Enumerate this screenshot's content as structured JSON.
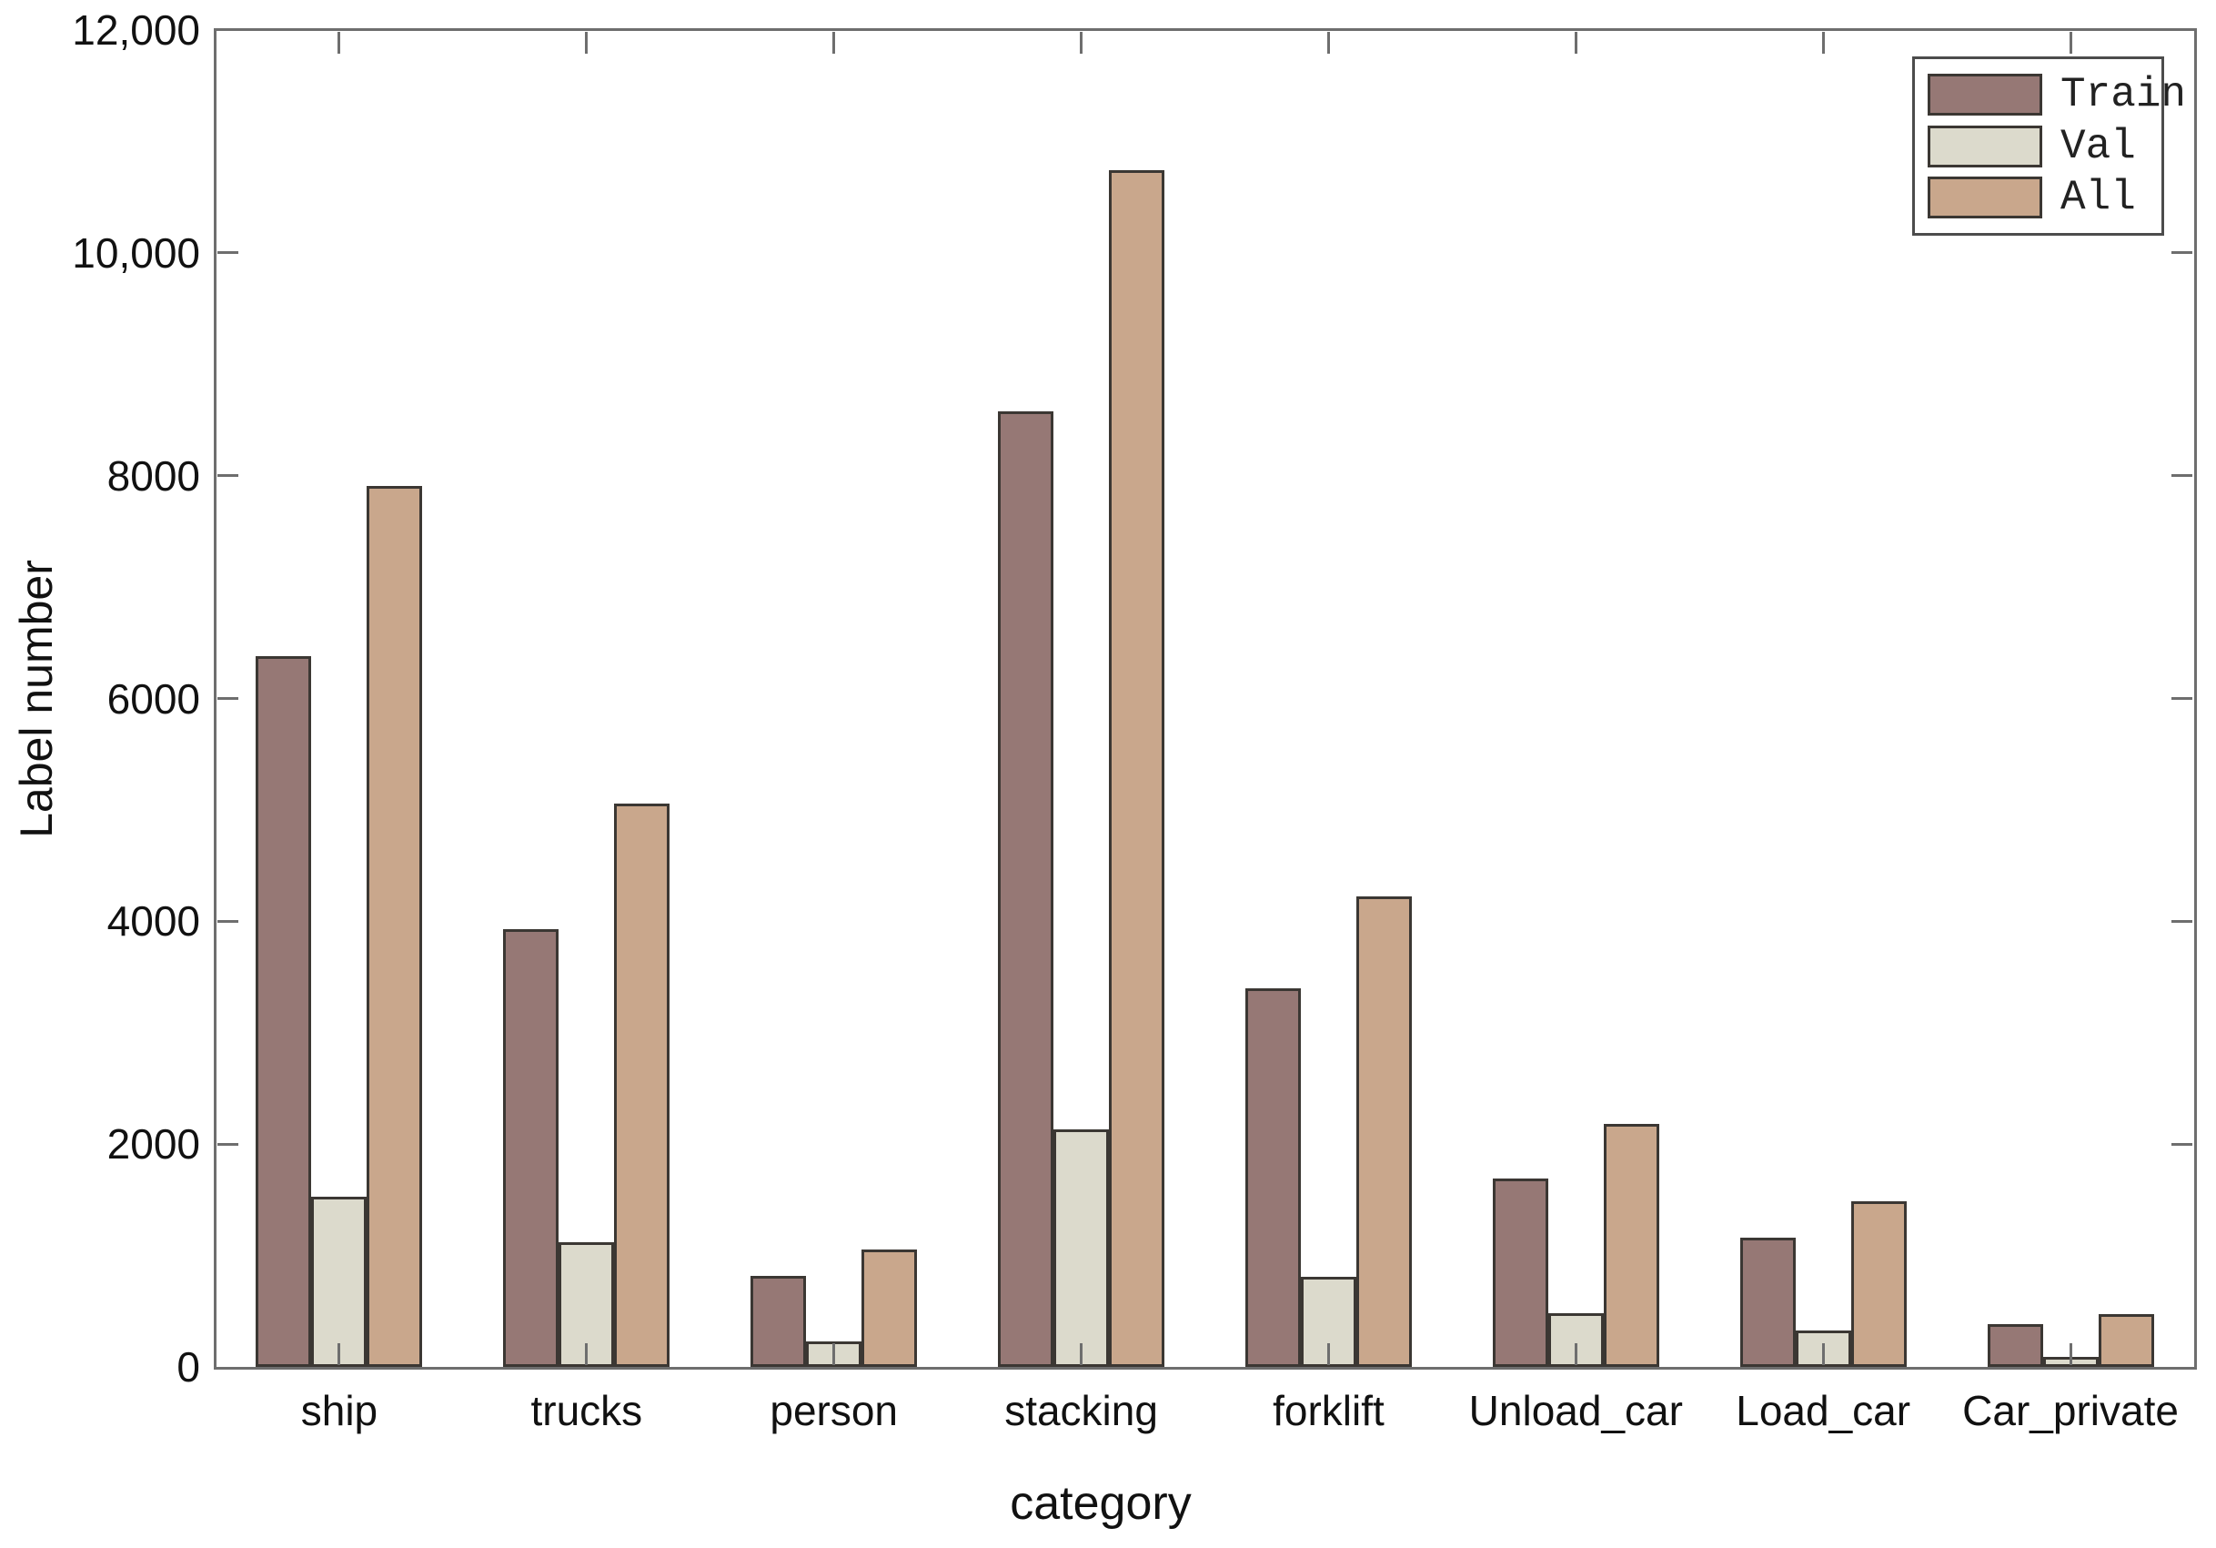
{
  "chart_data": {
    "type": "bar",
    "title": "",
    "xlabel": "category",
    "ylabel": "Label number",
    "ylim": [
      0,
      12000
    ],
    "grid": false,
    "legend_position": "top-right",
    "categories": [
      "ship",
      "trucks",
      "person",
      "stacking",
      "forklift",
      "Unload_car",
      "Load_car",
      "Car_private"
    ],
    "series": [
      {
        "name": "Train",
        "color": "#967875",
        "values": [
          6380,
          3930,
          820,
          8580,
          3400,
          1690,
          1160,
          380
        ]
      },
      {
        "name": "Val",
        "color": "#dcdacc",
        "values": [
          1530,
          1120,
          230,
          2130,
          810,
          480,
          330,
          90
        ]
      },
      {
        "name": "All",
        "color": "#c9a78c",
        "values": [
          7910,
          5060,
          1050,
          10740,
          4220,
          2180,
          1490,
          470
        ]
      }
    ],
    "yticks": [
      {
        "value": 0,
        "label": "0"
      },
      {
        "value": 2000,
        "label": "2000"
      },
      {
        "value": 4000,
        "label": "4000"
      },
      {
        "value": 6000,
        "label": "6000"
      },
      {
        "value": 8000,
        "label": "8000"
      },
      {
        "value": 10000,
        "label": "10,000"
      },
      {
        "value": 12000,
        "label": "12,000"
      }
    ],
    "colors": {
      "frame": "#6e6e6e",
      "bar_border": "#3b3733",
      "text": "#111111",
      "legend_border": "#4c4c4c",
      "background": "#ffffff"
    }
  }
}
